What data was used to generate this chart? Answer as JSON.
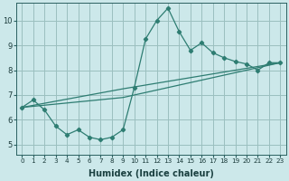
{
  "xlabel": "Humidex (Indice chaleur)",
  "bg_color": "#cce8ea",
  "grid_color": "#9bbfbf",
  "line_color": "#2e7d72",
  "x_ticks": [
    0,
    1,
    2,
    3,
    4,
    5,
    6,
    7,
    8,
    9,
    10,
    11,
    12,
    13,
    14,
    15,
    16,
    17,
    18,
    19,
    20,
    21,
    22,
    23
  ],
  "y_ticks": [
    5,
    6,
    7,
    8,
    9,
    10
  ],
  "ylim": [
    4.6,
    10.7
  ],
  "xlim": [
    -0.5,
    23.5
  ],
  "line1_x": [
    0,
    1,
    2,
    3,
    4,
    5,
    6,
    7,
    8,
    9,
    10,
    11,
    12,
    13,
    14,
    15,
    16,
    17,
    18,
    19,
    20,
    21,
    22,
    23
  ],
  "line1_y": [
    6.5,
    6.8,
    6.4,
    5.75,
    5.4,
    5.6,
    5.3,
    5.2,
    5.3,
    5.6,
    7.3,
    9.25,
    10.0,
    10.5,
    9.55,
    8.8,
    9.1,
    8.7,
    8.5,
    8.35,
    8.25,
    8.0,
    8.3,
    8.3
  ],
  "line2_x": [
    0,
    9,
    23
  ],
  "line2_y": [
    6.5,
    7.25,
    8.3
  ],
  "line3_x": [
    0,
    9,
    23
  ],
  "line3_y": [
    6.5,
    6.9,
    8.3
  ],
  "xlabel_fontsize": 7,
  "tick_fontsize_x": 5.2,
  "tick_fontsize_y": 6
}
